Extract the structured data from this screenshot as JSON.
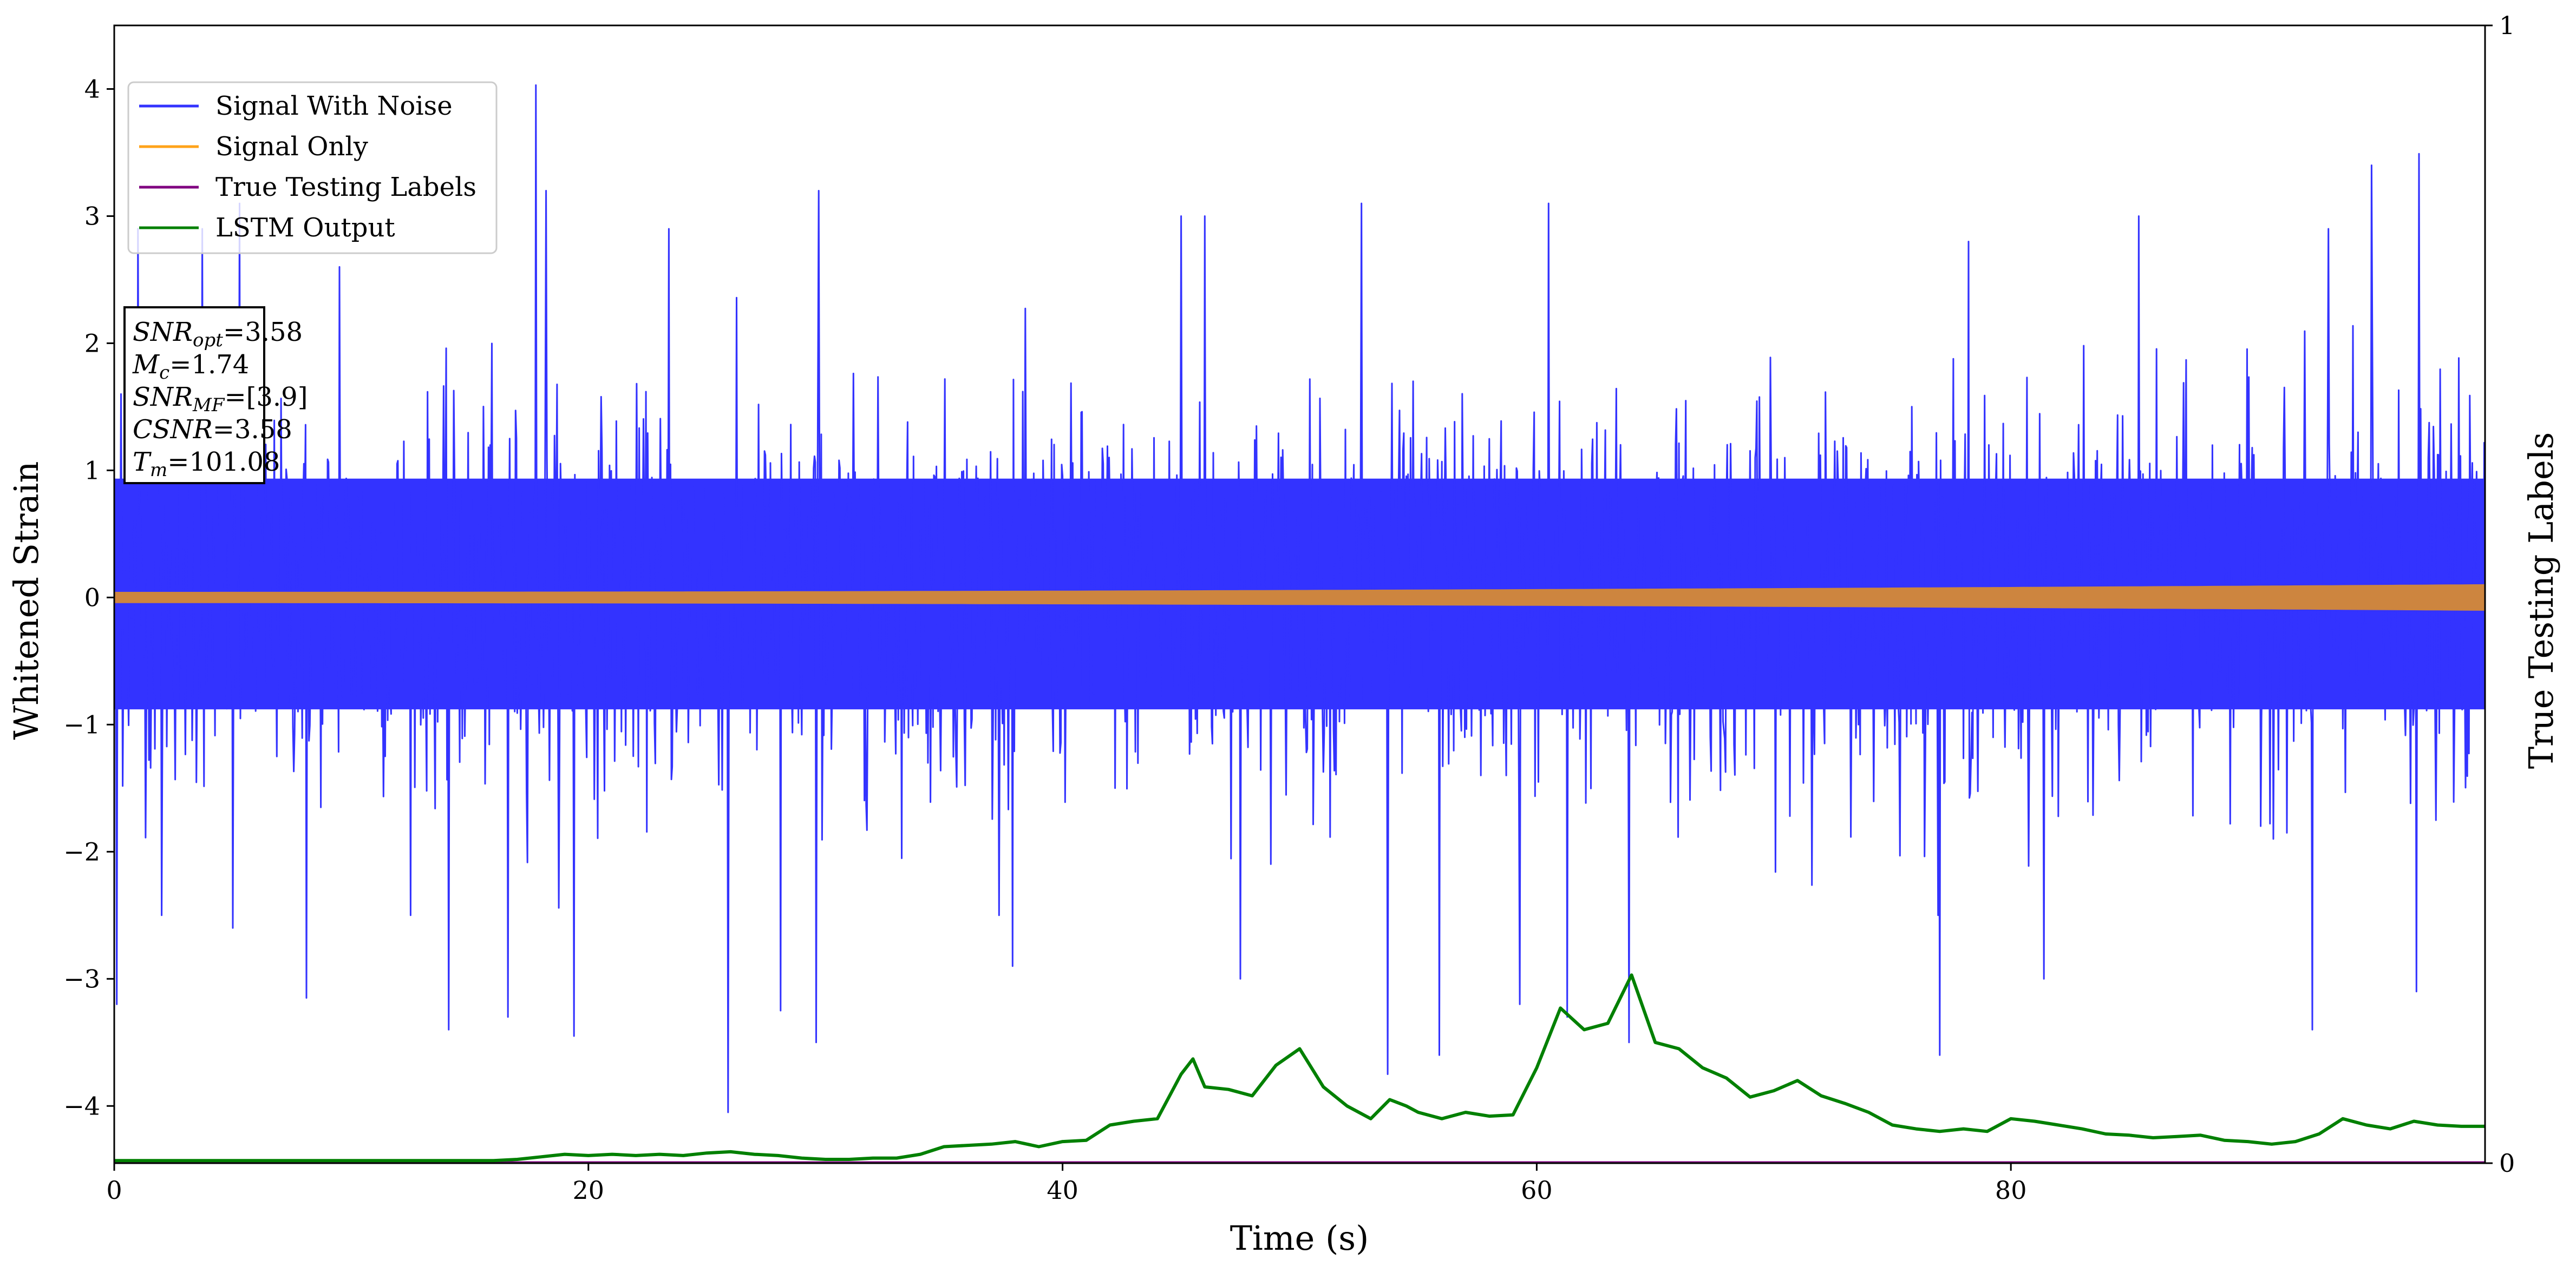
{
  "chart_data": {
    "type": "line",
    "xlabel": "Time (s)",
    "ylabel": "Whitened Strain",
    "ylabel_right": "True Testing Labels",
    "xlim": [
      0,
      100
    ],
    "ylim": [
      -4.45,
      4.5
    ],
    "ylim_right": [
      0,
      1
    ],
    "x_ticks": [
      0,
      20,
      40,
      60,
      80
    ],
    "y_ticks": [
      -4,
      -3,
      -2,
      -1,
      0,
      1,
      2,
      3,
      4
    ],
    "y_ticks_right": [
      0,
      1
    ],
    "grid": false,
    "legend_position": "upper-left",
    "legend": [
      {
        "label": "Signal With Noise",
        "color": "#3333ff"
      },
      {
        "label": "Signal Only",
        "color": "#ffa31a"
      },
      {
        "label": "True Testing Labels",
        "color": "#800080"
      },
      {
        "label": "LSTM Output",
        "color": "#008000"
      }
    ],
    "annotation": {
      "lines": [
        {
          "name": "SNR",
          "sub": "opt",
          "value": "=3.58"
        },
        {
          "name": "M",
          "sub": "c",
          "value": "=1.74"
        },
        {
          "name": "SNR",
          "sub": "MF",
          "value": "=[3.9]"
        },
        {
          "name": "CSNR",
          "sub": "",
          "value": "=3.58"
        },
        {
          "name": "T",
          "sub": "m",
          "value": "=101.08"
        }
      ]
    },
    "series": [
      {
        "name": "Signal With Noise",
        "color": "#3333ff",
        "style": "noise band",
        "typical_range": [
          -1.6,
          1.7
        ],
        "peaks": [
          [
            0.3,
            1.6
          ],
          [
            1.0,
            2.9
          ],
          [
            3.7,
            2.9
          ],
          [
            5.3,
            3.1
          ],
          [
            9.5,
            2.6
          ],
          [
            17.8,
            4.03
          ],
          [
            18.2,
            3.2
          ],
          [
            23.4,
            2.9
          ],
          [
            29.7,
            3.2
          ],
          [
            45.0,
            3.0
          ],
          [
            46.0,
            3.0
          ],
          [
            52.6,
            3.1
          ],
          [
            60.5,
            3.1
          ],
          [
            78.2,
            2.8
          ],
          [
            85.4,
            3.0
          ],
          [
            93.4,
            2.9
          ],
          [
            95.2,
            3.4
          ],
          [
            97.2,
            3.49
          ]
        ],
        "troughs": [
          [
            0.1,
            -3.2
          ],
          [
            2.0,
            -2.5
          ],
          [
            5.0,
            -2.6
          ],
          [
            8.1,
            -3.15
          ],
          [
            14.1,
            -3.4
          ],
          [
            16.6,
            -3.3
          ],
          [
            19.4,
            -3.45
          ],
          [
            25.9,
            -4.05
          ],
          [
            28.1,
            -3.25
          ],
          [
            29.6,
            -3.5
          ],
          [
            37.9,
            -2.9
          ],
          [
            47.5,
            -3.0
          ],
          [
            53.7,
            -3.75
          ],
          [
            55.9,
            -3.6
          ],
          [
            59.3,
            -3.2
          ],
          [
            61.3,
            -3.3
          ],
          [
            63.9,
            -3.5
          ],
          [
            77.0,
            -3.6
          ],
          [
            81.4,
            -3.0
          ],
          [
            92.7,
            -3.4
          ],
          [
            97.1,
            -3.1
          ]
        ]
      },
      {
        "name": "Signal Only",
        "color": "#cd853f",
        "style": "chirp band",
        "amplitude_start": 0.04,
        "amplitude_end": 0.1
      },
      {
        "name": "True Testing Labels",
        "axis": "right",
        "color": "#800080",
        "x": [
          0,
          100
        ],
        "y": [
          0,
          0
        ]
      },
      {
        "name": "LSTM Output",
        "axis": "left",
        "color": "#008000",
        "x": [
          0,
          10,
          16,
          17,
          18,
          19,
          20,
          21,
          22,
          23,
          24,
          25,
          26,
          27,
          28,
          29,
          30,
          31,
          32,
          33,
          34,
          35,
          36,
          37,
          38,
          39,
          40,
          41,
          42,
          43,
          44,
          45,
          45.5,
          46,
          47,
          48,
          49,
          50,
          51,
          52,
          53,
          53.8,
          54.5,
          55,
          56,
          57,
          58,
          59,
          60,
          61,
          62,
          63,
          64,
          65,
          66,
          67,
          68,
          69,
          70,
          71,
          72,
          73,
          74,
          75,
          76,
          77,
          78,
          79,
          80,
          81,
          82,
          83,
          84,
          85,
          86,
          87,
          88,
          89,
          90,
          91,
          92,
          93,
          94,
          95,
          96,
          97,
          98,
          99,
          100
        ],
        "y": [
          -4.43,
          -4.43,
          -4.43,
          -4.42,
          -4.4,
          -4.38,
          -4.39,
          -4.38,
          -4.39,
          -4.38,
          -4.39,
          -4.37,
          -4.36,
          -4.38,
          -4.39,
          -4.41,
          -4.42,
          -4.42,
          -4.41,
          -4.41,
          -4.38,
          -4.32,
          -4.31,
          -4.3,
          -4.28,
          -4.32,
          -4.28,
          -4.27,
          -4.15,
          -4.12,
          -4.1,
          -3.75,
          -3.63,
          -3.85,
          -3.87,
          -3.92,
          -3.68,
          -3.55,
          -3.85,
          -4.0,
          -4.1,
          -3.95,
          -4.0,
          -4.05,
          -4.1,
          -4.05,
          -4.08,
          -4.07,
          -3.7,
          -3.23,
          -3.4,
          -3.35,
          -2.97,
          -3.5,
          -3.55,
          -3.7,
          -3.78,
          -3.93,
          -3.88,
          -3.8,
          -3.92,
          -3.98,
          -4.05,
          -4.15,
          -4.18,
          -4.2,
          -4.18,
          -4.2,
          -4.1,
          -4.12,
          -4.15,
          -4.18,
          -4.22,
          -4.23,
          -4.25,
          -4.24,
          -4.23,
          -4.27,
          -4.28,
          -4.3,
          -4.28,
          -4.22,
          -4.1,
          -4.15,
          -4.18,
          -4.12,
          -4.15,
          -4.16,
          -4.16
        ]
      }
    ]
  }
}
